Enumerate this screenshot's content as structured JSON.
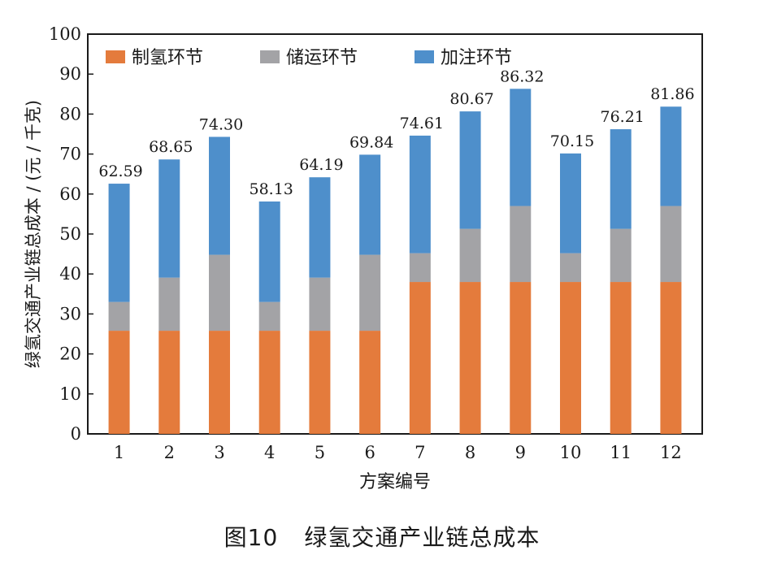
{
  "chart_data": {
    "type": "bar",
    "stacked": true,
    "categories": [
      "1",
      "2",
      "3",
      "4",
      "5",
      "6",
      "7",
      "8",
      "9",
      "10",
      "11",
      "12"
    ],
    "series": [
      {
        "name": "制氢环节",
        "color": "#e47b3c",
        "values": [
          25.8,
          25.8,
          25.8,
          25.8,
          25.8,
          25.8,
          38.0,
          38.0,
          38.0,
          38.0,
          38.0,
          38.0
        ]
      },
      {
        "name": "储运环节",
        "color": "#a3a3a6",
        "values": [
          7.2,
          13.3,
          19.0,
          7.2,
          13.3,
          19.0,
          7.2,
          13.3,
          19.0,
          7.2,
          13.3,
          19.0
        ]
      },
      {
        "name": "加注环节",
        "color": "#4e8fcb",
        "values": [
          29.59,
          29.55,
          29.5,
          25.13,
          25.09,
          25.04,
          29.41,
          29.37,
          29.32,
          24.95,
          24.91,
          24.86
        ]
      }
    ],
    "totals": [
      "62.59",
      "68.65",
      "74.30",
      "58.13",
      "64.19",
      "69.84",
      "74.61",
      "80.67",
      "86.32",
      "70.15",
      "76.21",
      "81.86"
    ],
    "xlabel": "方案编号",
    "ylabel": "绿氢交通产业链总成本 / (元 / 千克)",
    "ylim": [
      0,
      100
    ],
    "yticks": [
      0,
      10,
      20,
      30,
      40,
      50,
      60,
      70,
      80,
      90,
      100
    ],
    "legend_position": "top-left",
    "grid": false
  },
  "caption": {
    "figure_number": "图10",
    "title": "绿氢交通产业链总成本"
  }
}
